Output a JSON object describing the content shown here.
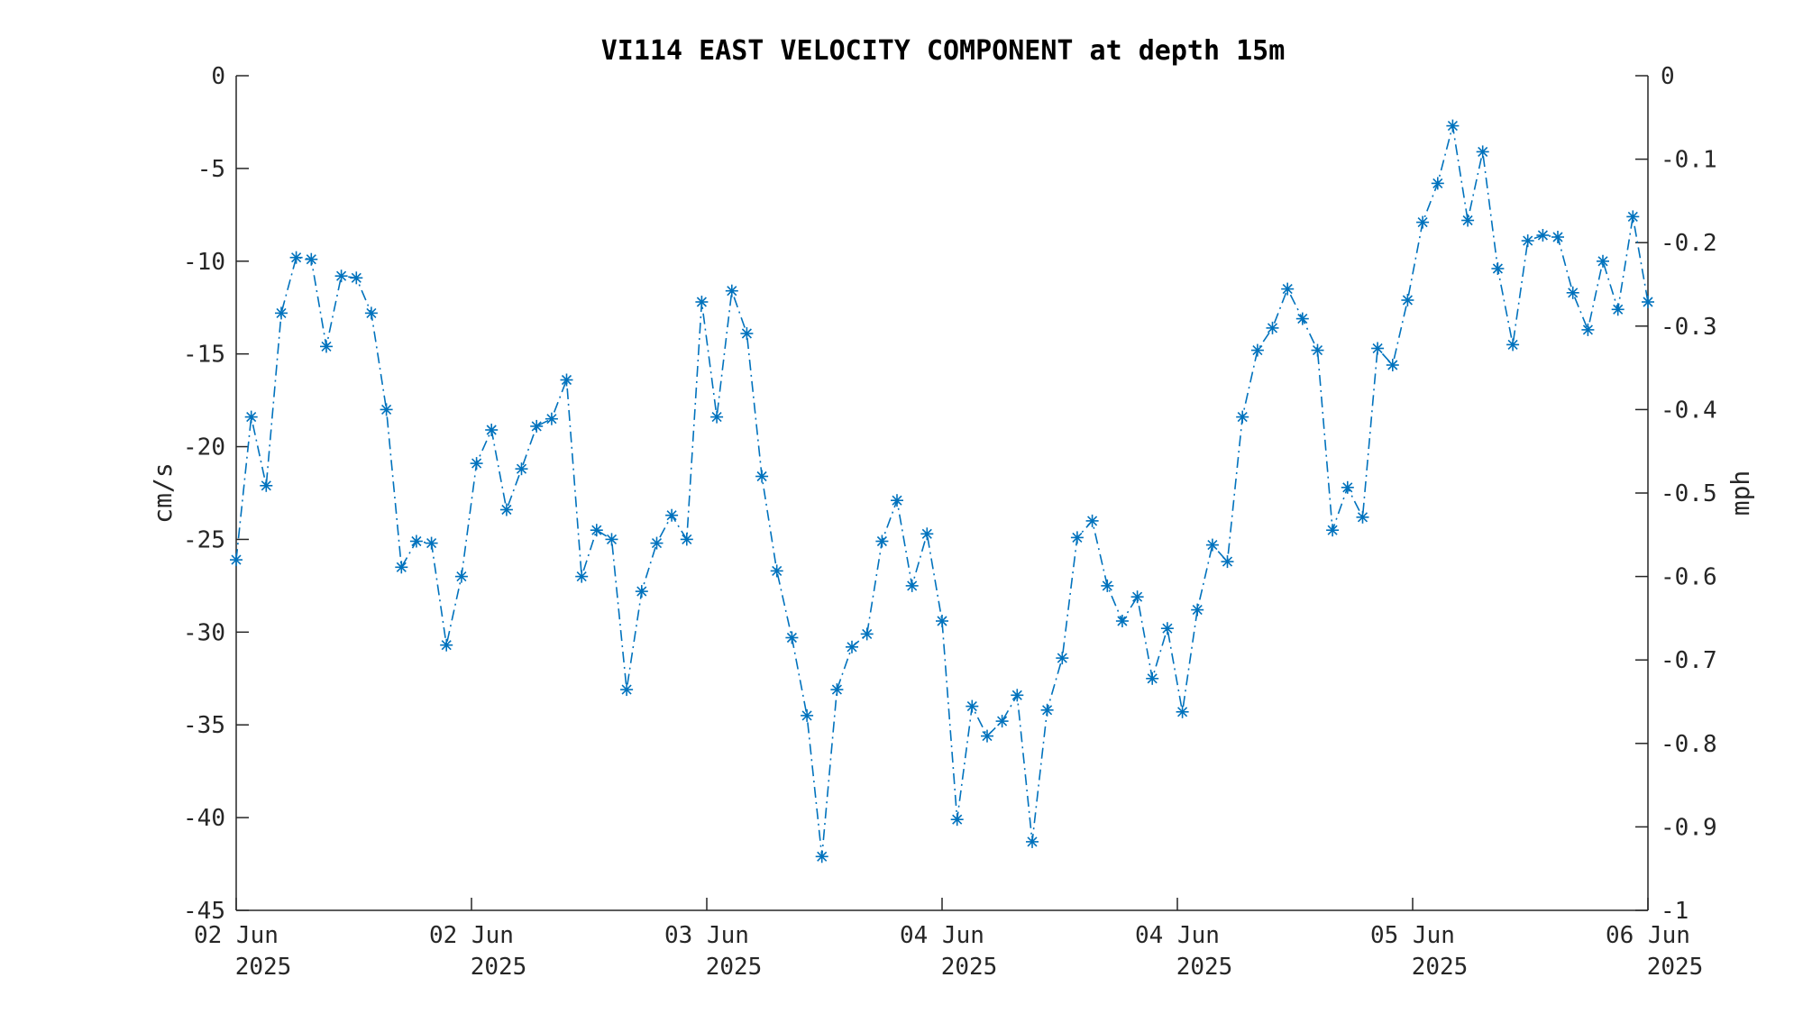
{
  "chart_data": {
    "type": "line",
    "title": "VI114 EAST VELOCITY COMPONENT at depth 15m",
    "ylabel": "cm/s",
    "ylabel_right": "mph",
    "ylim": [
      -45,
      0
    ],
    "ylim_right": [
      -1,
      0
    ],
    "y_ticks": [
      "0",
      "-5",
      "-10",
      "-15",
      "-20",
      "-25",
      "-30",
      "-35",
      "-40",
      "-45"
    ],
    "y_ticks_right": [
      "0",
      "-0.1",
      "-0.2",
      "-0.3",
      "-0.4",
      "-0.5",
      "-0.6",
      "-0.7",
      "-0.8",
      "-0.9",
      "-1"
    ],
    "x_ticks": [
      {
        "day": "02 Jun",
        "year": "2025"
      },
      {
        "day": "02 Jun",
        "year": "2025"
      },
      {
        "day": "03 Jun",
        "year": "2025"
      },
      {
        "day": "04 Jun",
        "year": "2025"
      },
      {
        "day": "04 Jun",
        "year": "2025"
      },
      {
        "day": "05 Jun",
        "year": "2025"
      },
      {
        "day": "06 Jun",
        "year": "2025"
      }
    ],
    "grid": false,
    "line_style": "dash-dot",
    "marker": "asterisk",
    "color": "#0072BD",
    "series": [
      {
        "values": [
          -26.1,
          -18.4,
          -22.1,
          -12.8,
          -9.8,
          -9.9,
          -14.6,
          -10.8,
          -10.9,
          -12.8,
          -18.0,
          -26.5,
          -25.1,
          -25.2,
          -30.7,
          -27.0,
          -20.9,
          -19.1,
          -23.4,
          -21.2,
          -18.9,
          -18.5,
          -16.4,
          -27.0,
          -24.5,
          -25.0,
          -33.1,
          -27.8,
          -25.2,
          -23.7,
          -25.0,
          -12.2,
          -18.4,
          -11.6,
          -13.9,
          -21.6,
          -26.7,
          -30.3,
          -34.5,
          -42.1,
          -33.1,
          -30.8,
          -30.1,
          -25.1,
          -22.9,
          -27.5,
          -24.7,
          -29.4,
          -40.1,
          -34.0,
          -35.6,
          -34.8,
          -33.4,
          -41.3,
          -34.2,
          -31.4,
          -24.9,
          -24.0,
          -27.5,
          -29.4,
          -28.1,
          -32.5,
          -29.8,
          -34.3,
          -28.8,
          -25.3,
          -26.2,
          -18.4,
          -14.8,
          -13.6,
          -11.5,
          -13.1,
          -14.8,
          -24.5,
          -22.2,
          -23.8,
          -14.7,
          -15.6,
          -12.1,
          -7.9,
          -5.8,
          -2.7,
          -7.8,
          -4.1,
          -10.4,
          -14.5,
          -8.9,
          -8.6,
          -8.7,
          -11.7,
          -13.7,
          -10.0,
          -12.6,
          -7.6,
          -12.2
        ]
      }
    ]
  }
}
